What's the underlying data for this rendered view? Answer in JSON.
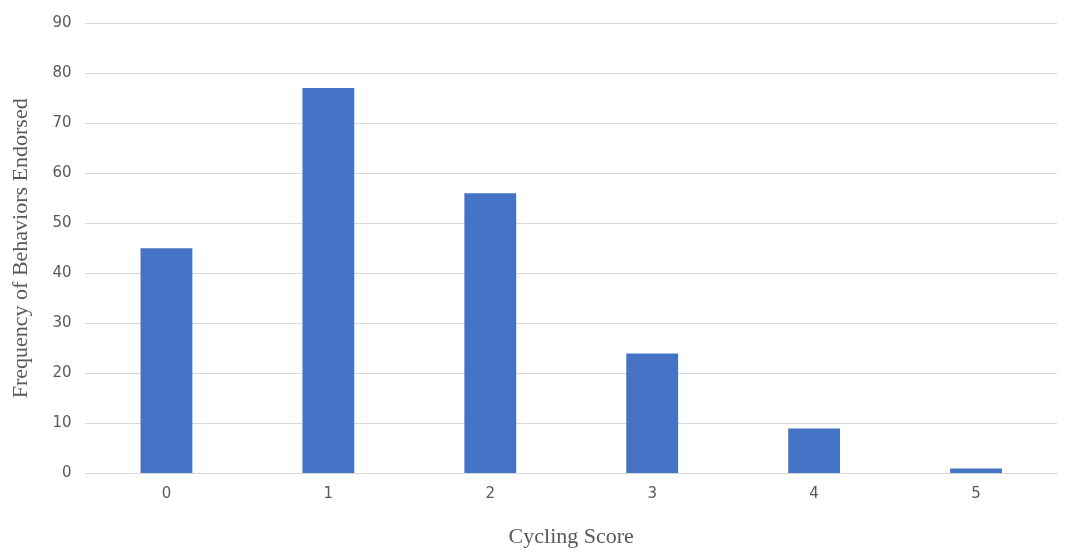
{
  "chart_data": {
    "type": "bar",
    "xlabel": "Cycling Score",
    "ylabel": "Frequency of Behaviors Endorsed",
    "categories": [
      "0",
      "1",
      "2",
      "3",
      "4",
      "5"
    ],
    "values": [
      45,
      77,
      56,
      24,
      9,
      1
    ],
    "color": "#4472c4",
    "ylim": [
      0,
      90
    ],
    "yticks": [
      0,
      10,
      20,
      30,
      40,
      50,
      60,
      70,
      80,
      90
    ],
    "grid": "y",
    "legend": false
  }
}
